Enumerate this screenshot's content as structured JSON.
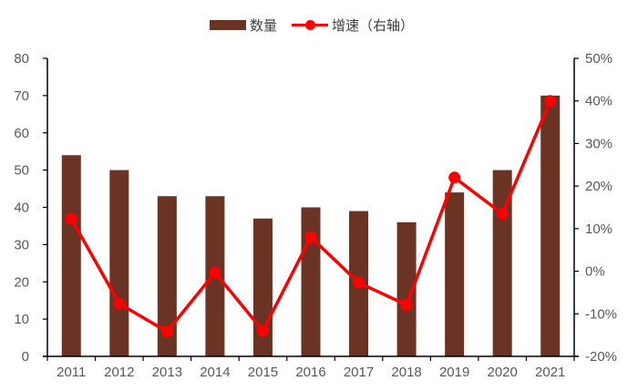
{
  "legend": {
    "bar_label": "数量",
    "line_label": "增速（右轴）"
  },
  "colors": {
    "bar": "#6a3323",
    "line": "#ff0000",
    "axis": "#000000",
    "text": "#595959"
  },
  "chart_data": {
    "type": "bar+line",
    "title": "",
    "categories": [
      "2011",
      "2012",
      "2013",
      "2014",
      "2015",
      "2016",
      "2017",
      "2018",
      "2019",
      "2020",
      "2021"
    ],
    "series": [
      {
        "name": "数量",
        "type": "bar",
        "axis": "left",
        "values": [
          54,
          50,
          43,
          43,
          37,
          40,
          39,
          36,
          44,
          50,
          70
        ]
      },
      {
        "name": "增速（右轴）",
        "type": "line",
        "axis": "right",
        "unit": "%",
        "values": [
          12.3,
          -7.6,
          -14.2,
          -0.3,
          -14.0,
          8.0,
          -2.7,
          -7.9,
          22.0,
          13.5,
          40.0
        ]
      }
    ],
    "left_axis": {
      "ylim": [
        0,
        80
      ],
      "ticks": [
        "0",
        "10",
        "20",
        "30",
        "40",
        "50",
        "60",
        "70",
        "80"
      ]
    },
    "right_axis": {
      "ylim": [
        -20,
        50
      ],
      "ticks": [
        "-20%",
        "-10%",
        "0%",
        "10%",
        "20%",
        "30%",
        "40%",
        "50%"
      ]
    },
    "xlabel": "",
    "ylabel": "",
    "grid": false,
    "legend_position": "top"
  }
}
